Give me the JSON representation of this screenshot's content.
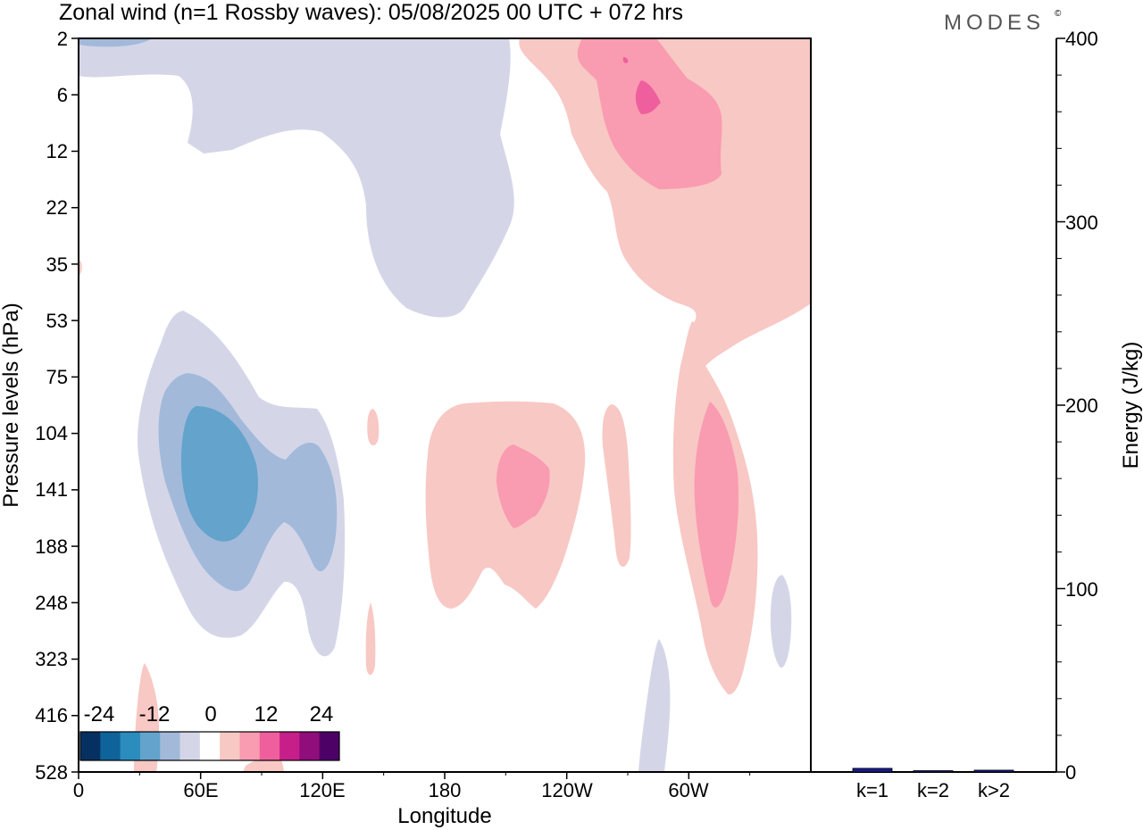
{
  "title": "Zonal wind (n=1 Rossby waves):  05/08/2025  00 UTC  + 072 hrs",
  "logo": "MODES",
  "logo_mark": "©",
  "colors": {
    "neg3": "#053061",
    "neg2": "#0e649a",
    "neg1": "#2b8cbe",
    "neg_med": "#63a3cc",
    "neg_light": "#a2b9da",
    "neg_faint": "#d4d6e8",
    "zero": "#ffffff",
    "pos_faint": "#f8c8c4",
    "pos_light": "#f99bb1",
    "pos_med": "#ef5f9d",
    "pos3": "#c61f8a",
    "pos4": "#8f0e7c",
    "pos5": "#4d0066"
  },
  "chart_data": [
    {
      "type": "contour",
      "title": "Zonal wind (n=1 Rossby waves):  05/08/2025  00 UTC  + 072 hrs",
      "xlabel": "Longitude",
      "ylabel": "Pressure levels (hPa)",
      "x_ticks": [
        "0",
        "60E",
        "120E",
        "180",
        "120W",
        "60W"
      ],
      "y_ticks": [
        "2",
        "6",
        "12",
        "22",
        "35",
        "53",
        "75",
        "104",
        "141",
        "188",
        "248",
        "323",
        "416",
        "528"
      ],
      "colorbar": {
        "tick_labels": [
          "-24",
          "-12",
          "0",
          "12",
          "24"
        ],
        "levels": [
          -30,
          -25,
          -20,
          -15,
          -10,
          -5,
          0,
          5,
          10,
          15,
          20,
          25,
          30
        ],
        "colors": [
          "#053061",
          "#0e649a",
          "#2b8cbe",
          "#63a3cc",
          "#a2b9da",
          "#d4d6e8",
          "#ffffff",
          "#f8c8c4",
          "#f99bb1",
          "#ef5f9d",
          "#c61f8a",
          "#8f0e7c",
          "#4d0066"
        ]
      }
    },
    {
      "type": "bar",
      "ylabel": "Energy (J/kg)",
      "ylim": [
        0,
        400
      ],
      "y_ticks": [
        "0",
        "100",
        "200",
        "300",
        "400"
      ],
      "categories": [
        "k=1",
        "k=2",
        "k>2"
      ],
      "values": [
        2,
        0.5,
        1
      ],
      "colors": [
        "#1a1a8c",
        "#1a1a8c",
        "#1a1a8c"
      ]
    }
  ]
}
